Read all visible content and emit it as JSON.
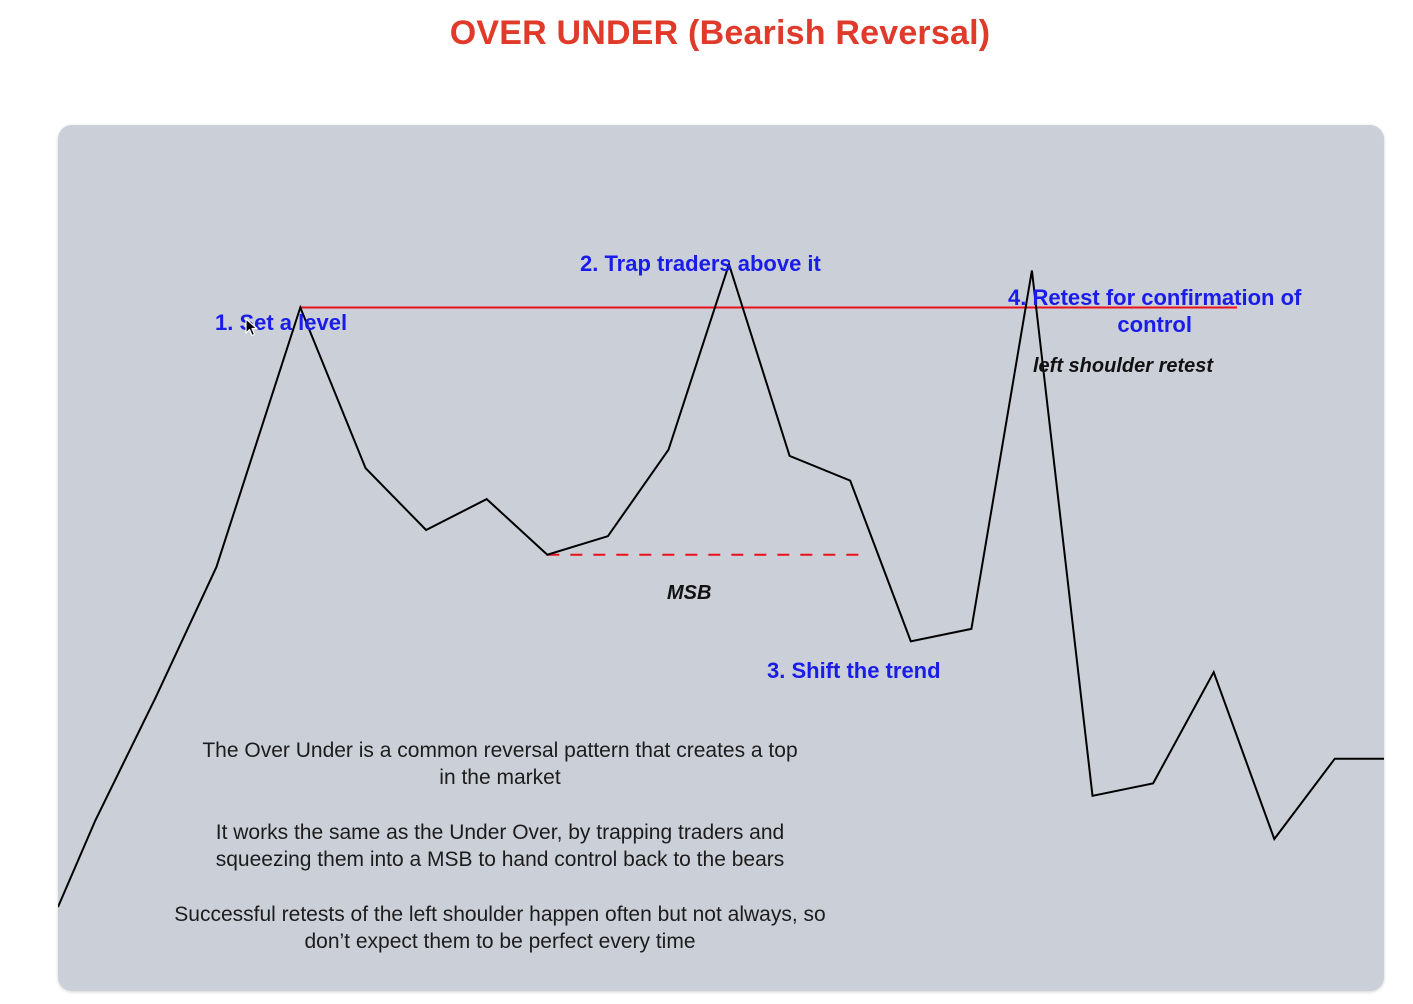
{
  "title": "OVER UNDER (Bearish Reversal)",
  "labels": {
    "step1": "1. Set a level",
    "step2": "2. Trap traders above it",
    "step3": "3. Shift the trend",
    "step4_line1": "4. Retest for confirmation of",
    "step4_line2": "control",
    "left_shoulder": "left shoulder retest",
    "msb": "MSB"
  },
  "description": [
    "The Over Under is a common reversal pattern that creates a top in the market",
    "It works the same as the Under Over, by trapping traders and squeezing them into a MSB to hand control back to the bears",
    "Successful retests of the left shoulder happen often but not always, so don’t expect them to be perfect every time"
  ],
  "colors": {
    "title": "#e03a2b",
    "steps": "#1a1ce8",
    "level_line": "#e8101a",
    "msb_line": "#e8101a",
    "price_line": "#000000",
    "panel": "#cbcfd8"
  },
  "chart_data": {
    "type": "line",
    "series": [
      {
        "values": [
          [
            0,
            0.0
          ],
          [
            0.08,
            0.14
          ],
          [
            0.21,
            0.34
          ],
          [
            0.34,
            0.55
          ],
          [
            0.52,
            0.97
          ],
          [
            0.66,
            0.71
          ],
          [
            0.79,
            0.61
          ],
          [
            0.92,
            0.66
          ],
          [
            1.05,
            0.57
          ],
          [
            1.18,
            0.6
          ],
          [
            1.31,
            0.74
          ],
          [
            1.44,
            1.04
          ],
          [
            1.57,
            0.73
          ],
          [
            1.7,
            0.69
          ],
          [
            1.83,
            0.43
          ],
          [
            1.96,
            0.45
          ],
          [
            2.09,
            1.03
          ],
          [
            2.22,
            0.18
          ],
          [
            2.35,
            0.2
          ],
          [
            2.48,
            0.38
          ],
          [
            2.61,
            0.11
          ],
          [
            2.74,
            0.24
          ],
          [
            2.87,
            0.24
          ],
          [
            2.93,
            0.22
          ]
        ]
      }
    ],
    "level": 0.97,
    "msb_level": 0.57
  },
  "icons": {
    "cursor": "mouse-pointer-icon"
  }
}
